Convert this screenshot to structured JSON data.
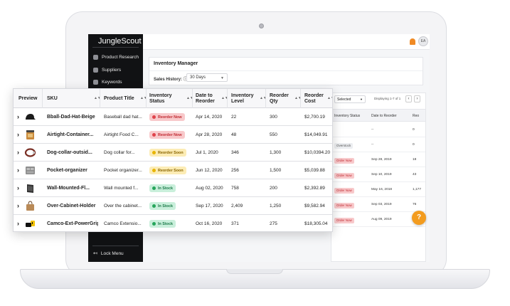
{
  "app": {
    "brand": "JungleScout",
    "avatar_initials": "EA",
    "nav": [
      {
        "label": "Product Research",
        "icon": "magnifier-icon"
      },
      {
        "label": "Suppliers",
        "icon": "building-icon"
      },
      {
        "label": "Keywords",
        "icon": "key-icon"
      }
    ],
    "lock_menu": "Lock Menu",
    "help_glyph": "?"
  },
  "panel": {
    "title": "Inventory Manager",
    "sales_history_label": "Sales History:",
    "sales_history_value": "30 Days"
  },
  "background_table": {
    "filter_value": "Selected",
    "displaying": "Displaying 1-7 of 1",
    "headers": [
      "Inventory Status",
      "Date to Reorder",
      "Reo"
    ],
    "rows": [
      {
        "status": "",
        "date": "--",
        "qty": "0"
      },
      {
        "status": "Overstock",
        "date": "--",
        "qty": "0"
      },
      {
        "status": "Order Now",
        "date": "Sep 28, 2019",
        "qty": "18"
      },
      {
        "status": "Order Now",
        "date": "Sep 10, 2019",
        "qty": "43"
      },
      {
        "status": "Order Now",
        "date": "May 16, 2018",
        "qty": "1,177"
      },
      {
        "status": "Order Now",
        "date": "Sep 03, 2019",
        "qty": "76"
      },
      {
        "status": "Order Now",
        "date": "Aug 09, 2019",
        "qty": "27"
      }
    ]
  },
  "table": {
    "headers": {
      "preview": "Preview",
      "sku": "SKU",
      "product_title": "Product Title",
      "inventory_status": "Inventory Status",
      "date_to_reorder": "Date to Reorder",
      "inventory_level": "Inventory Level",
      "reorder_qty": "Reorder Qty",
      "reorder_cost": "Reorder Cost"
    },
    "rows": [
      {
        "sku": "Bball-Dad-Hat-Beige",
        "title": "Baseball dad hat...",
        "status": "Reorder Now",
        "status_kind": "now",
        "date": "Apr 14, 2020",
        "level": "22",
        "qty": "300",
        "cost": "$2,700.19",
        "thumb": "cap"
      },
      {
        "sku": "Airtight-Container...",
        "title": "Airtight Food C...",
        "status": "Reorder Now",
        "status_kind": "now",
        "date": "Apr 28, 2020",
        "level": "48",
        "qty": "550",
        "cost": "$14,049.91",
        "thumb": "jar"
      },
      {
        "sku": "Dog-collar-outsid...",
        "title": "Dog collar for...",
        "status": "Reorder Soon",
        "status_kind": "soon",
        "date": "Jul 1, 2020",
        "level": "346",
        "qty": "1,300",
        "cost": "$10,0394.20",
        "thumb": "collar"
      },
      {
        "sku": "Pocket-organizer",
        "title": "Pocket organizer...",
        "status": "Reorder Soon",
        "status_kind": "soon",
        "date": "Jun 12, 2020",
        "level": "256",
        "qty": "1,500",
        "cost": "$5,039.88",
        "thumb": "organizer"
      },
      {
        "sku": "Wall-Mounted-Fl...",
        "title": "Wall mounted f...",
        "status": "In Stock",
        "status_kind": "stock",
        "date": "Aug 02, 2020",
        "level": "758",
        "qty": "200",
        "cost": "$2,392.89",
        "thumb": "wallbox"
      },
      {
        "sku": "Over-Cabinet-Holder",
        "title": "Over the cabinet...",
        "status": "In Stock",
        "status_kind": "stock",
        "date": "Sep 17, 2020",
        "level": "2,409",
        "qty": "1,250",
        "cost": "$9,582.94",
        "thumb": "bag"
      },
      {
        "sku": "Camco-Ext-PowerGrip",
        "title": "Camco Extensio...",
        "status": "In Stock",
        "status_kind": "stock",
        "date": "Oct 16, 2020",
        "level": "371",
        "qty": "275",
        "cost": "$18,305.04",
        "thumb": "plug"
      }
    ]
  },
  "colors": {
    "now_bg": "#f8c9cb",
    "now_fg": "#c0282f",
    "now_dot": "#e0434b",
    "soon_bg": "#fcecb5",
    "soon_fg": "#8a6500",
    "soon_dot": "#e8b400",
    "stock_bg": "#c9efdb",
    "stock_fg": "#1b7a48",
    "stock_dot": "#26a65b",
    "accent": "#f39c1f"
  }
}
